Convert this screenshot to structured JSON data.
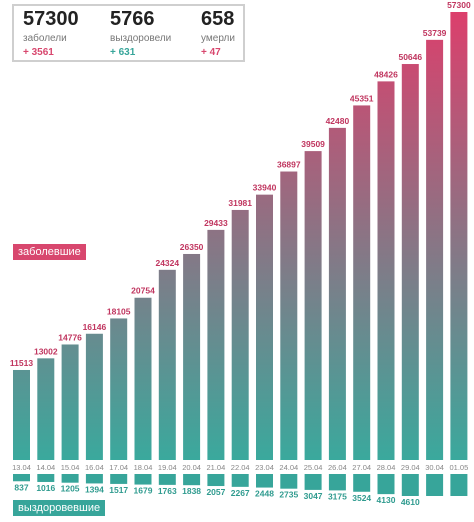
{
  "summary": {
    "stats": [
      {
        "value": "57300",
        "label": "заболели",
        "delta": "+ 3561"
      },
      {
        "value": "5766",
        "label": "выздоровели",
        "delta": "+ 631"
      },
      {
        "value": "658",
        "label": "умерли",
        "delta": "+ 47"
      }
    ]
  },
  "legend": {
    "sick": "заболевшие",
    "recovered": "выздоровевшие"
  },
  "colors": {
    "sick_start": "#3aa99d",
    "sick_end": "#dc3f6c",
    "recovered": "#37a59a",
    "sick_label": "#c0355f",
    "recovered_label": "#2f9b8f",
    "delta_sick": "#d8476e",
    "delta_rec": "#37a59a",
    "delta_dead": "#d8476e"
  },
  "chart_data": {
    "type": "bar",
    "categories": [
      "13.04",
      "14.04",
      "15.04",
      "16.04",
      "17.04",
      "18.04",
      "19.04",
      "20.04",
      "21.04",
      "22.04",
      "23.04",
      "24.04",
      "25.04",
      "26.04",
      "27.04",
      "28.04",
      "29.04",
      "30.04",
      "01.05"
    ],
    "series": [
      {
        "name": "заболевшие",
        "values": [
          11513,
          13002,
          14776,
          16146,
          18105,
          20754,
          24324,
          26350,
          29433,
          31981,
          33940,
          36897,
          39509,
          42480,
          45351,
          48426,
          50646,
          53739,
          57300
        ]
      },
      {
        "name": "выздоровевшие",
        "values": [
          837,
          1016,
          1205,
          1394,
          1517,
          1679,
          1763,
          1838,
          2057,
          2267,
          2448,
          2735,
          3047,
          3175,
          3524,
          4130,
          4610,
          null,
          null
        ]
      }
    ],
    "ylim": [
      0,
      57300
    ]
  }
}
